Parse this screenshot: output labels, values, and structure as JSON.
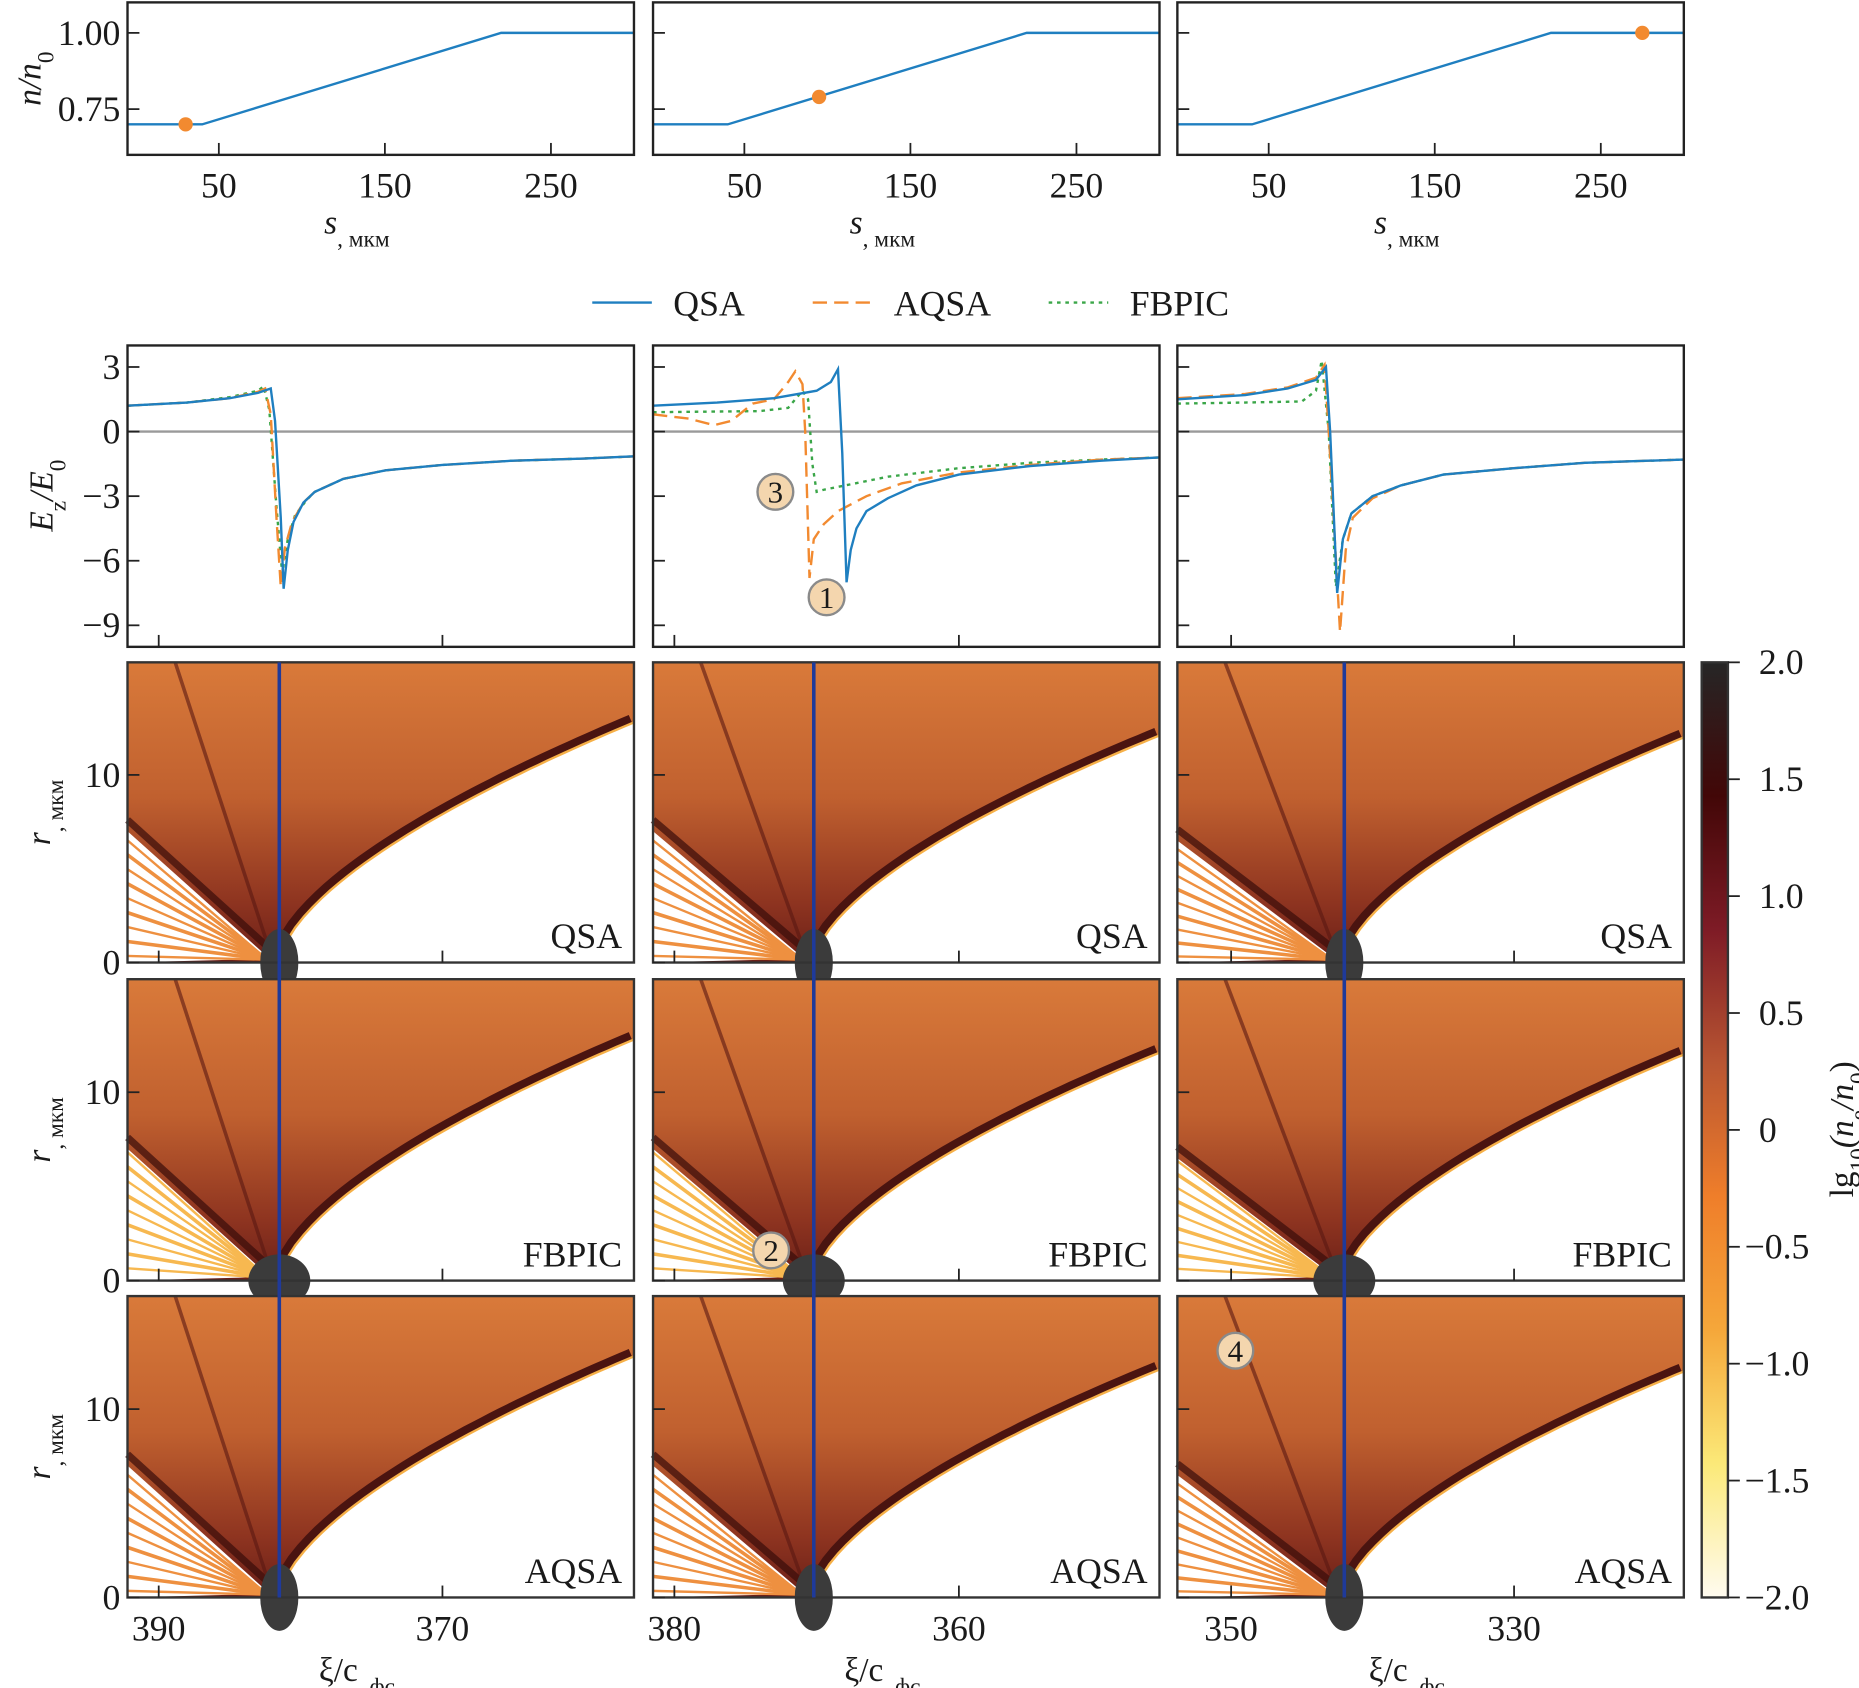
{
  "chart_data": {
    "type": "line",
    "density_profile": {
      "ylabel": [
        "n/n",
        "0"
      ],
      "xlabel": [
        "s",
        ", мкм"
      ],
      "xlim": [
        -5,
        300
      ],
      "ylim": [
        0.6,
        1.1
      ],
      "xticks": [
        "50",
        "150",
        "250"
      ],
      "xtick_values": [
        50,
        150,
        250
      ],
      "yticks": [
        "0.75",
        "1.00"
      ],
      "ytick_values": [
        0.75,
        1.0
      ],
      "profile": {
        "s": [
          -5,
          40,
          220,
          300
        ],
        "n": [
          0.7,
          0.7,
          1.0,
          1.0
        ]
      },
      "line_color": "#1f7fc0",
      "marker_color": "#f28a30",
      "markers": [
        {
          "s": 30,
          "n": 0.7
        },
        {
          "s": 95,
          "n": 0.79
        },
        {
          "s": 275,
          "n": 1.0
        }
      ]
    },
    "legend": {
      "placement": "top-center",
      "entries": [
        {
          "name": "QSA",
          "color": "#1f7fc0",
          "style": "solid"
        },
        {
          "name": "AQSA",
          "color": "#f28a30",
          "style": "dashed"
        },
        {
          "name": "FBPIC",
          "color": "#3aa648",
          "style": "dotted"
        }
      ]
    },
    "ez": {
      "ylabel": [
        "E",
        "z",
        "/E",
        "0"
      ],
      "ylim": [
        -10,
        4
      ],
      "yticks": [
        "3",
        "0",
        "−3",
        "−6",
        "−9"
      ],
      "ytick_values": [
        3,
        0,
        -3,
        -6,
        -9
      ],
      "zero_line_color": "#9a9a9a",
      "panels": [
        {
          "xlim": [
            392.2,
            356.5
          ],
          "series": {
            "QSA": [
              [
                392.2,
                1.2
              ],
              [
                388,
                1.35
              ],
              [
                385,
                1.55
              ],
              [
                383,
                1.8
              ],
              [
                382.1,
                2.0
              ],
              [
                381.8,
                0.5
              ],
              [
                381.4,
                -4
              ],
              [
                381.2,
                -7.3
              ],
              [
                380.9,
                -5.5
              ],
              [
                380.5,
                -4.2
              ],
              [
                379.8,
                -3.3
              ],
              [
                379,
                -2.8
              ],
              [
                377,
                -2.2
              ],
              [
                374,
                -1.8
              ],
              [
                370,
                -1.55
              ],
              [
                365,
                -1.35
              ],
              [
                360,
                -1.25
              ],
              [
                356.5,
                -1.15
              ]
            ],
            "AQSA": [
              [
                392.2,
                1.2
              ],
              [
                388,
                1.35
              ],
              [
                385,
                1.55
              ],
              [
                383,
                1.85
              ],
              [
                382.5,
                2.0
              ],
              [
                382.1,
                0.8
              ],
              [
                381.7,
                -4
              ],
              [
                381.4,
                -7.2
              ],
              [
                381.1,
                -5.4
              ],
              [
                380.6,
                -4.2
              ],
              [
                379.8,
                -3.3
              ],
              [
                379,
                -2.8
              ],
              [
                377,
                -2.2
              ],
              [
                374,
                -1.8
              ],
              [
                370,
                -1.55
              ],
              [
                365,
                -1.35
              ],
              [
                360,
                -1.25
              ],
              [
                356.5,
                -1.15
              ]
            ],
            "FBPIC": [
              [
                392.2,
                1.2
              ],
              [
                388,
                1.35
              ],
              [
                385,
                1.6
              ],
              [
                383,
                1.9
              ],
              [
                382.6,
                2.1
              ],
              [
                382.2,
                1.0
              ],
              [
                381.7,
                -3.5
              ],
              [
                381.3,
                -6.6
              ],
              [
                380.9,
                -5.0
              ],
              [
                380.4,
                -3.9
              ],
              [
                379.6,
                -3.2
              ],
              [
                379,
                -2.8
              ],
              [
                377,
                -2.2
              ],
              [
                374,
                -1.8
              ],
              [
                370,
                -1.55
              ],
              [
                365,
                -1.35
              ],
              [
                360,
                -1.25
              ],
              [
                356.5,
                -1.15
              ]
            ]
          }
        },
        {
          "xlim": [
            381.5,
            345.9
          ],
          "series": {
            "QSA": [
              [
                381.5,
                1.2
              ],
              [
                377,
                1.35
              ],
              [
                373,
                1.55
              ],
              [
                370,
                1.9
              ],
              [
                369,
                2.3
              ],
              [
                368.5,
                2.9
              ],
              [
                368.2,
                -1
              ],
              [
                367.9,
                -7.0
              ],
              [
                367.6,
                -5.5
              ],
              [
                367.2,
                -4.5
              ],
              [
                366.5,
                -3.7
              ],
              [
                365,
                -3.1
              ],
              [
                363,
                -2.5
              ],
              [
                360,
                -2.0
              ],
              [
                355,
                -1.6
              ],
              [
                350,
                -1.35
              ],
              [
                345.9,
                -1.2
              ]
            ],
            "AQSA": [
              [
                381.5,
                0.8
              ],
              [
                379,
                0.6
              ],
              [
                377.2,
                0.3
              ],
              [
                376,
                0.5
              ],
              [
                374.5,
                1.3
              ],
              [
                373,
                1.5
              ],
              [
                372,
                2.3
              ],
              [
                371.5,
                2.8
              ],
              [
                371,
                2.2
              ],
              [
                370.8,
                0
              ],
              [
                370.5,
                -6.8
              ],
              [
                370.2,
                -5
              ],
              [
                369.5,
                -4.3
              ],
              [
                368.5,
                -3.7
              ],
              [
                366.5,
                -3.0
              ],
              [
                364,
                -2.4
              ],
              [
                360,
                -1.9
              ],
              [
                355,
                -1.55
              ],
              [
                350,
                -1.3
              ],
              [
                345.9,
                -1.2
              ]
            ],
            "FBPIC": [
              [
                381.5,
                0.9
              ],
              [
                374,
                0.95
              ],
              [
                372,
                1.1
              ],
              [
                371,
                1.9
              ],
              [
                370.6,
                1.5
              ],
              [
                370.3,
                -1.5
              ],
              [
                370,
                -2.8
              ],
              [
                369.5,
                -2.7
              ],
              [
                368,
                -2.5
              ],
              [
                365,
                -2.1
              ],
              [
                360,
                -1.7
              ],
              [
                355,
                -1.45
              ],
              [
                350,
                -1.3
              ],
              [
                345.9,
                -1.2
              ]
            ]
          }
        },
        {
          "xlim": [
            353.8,
            318
          ],
          "series": {
            "QSA": [
              [
                353.8,
                1.5
              ],
              [
                349,
                1.7
              ],
              [
                346,
                2.0
              ],
              [
                344,
                2.4
              ],
              [
                343.3,
                3.0
              ],
              [
                343,
                0
              ],
              [
                342.5,
                -7.5
              ],
              [
                342.1,
                -5
              ],
              [
                341.5,
                -3.8
              ],
              [
                340,
                -3
              ],
              [
                338,
                -2.5
              ],
              [
                335,
                -2.0
              ],
              [
                330,
                -1.7
              ],
              [
                325,
                -1.45
              ],
              [
                318,
                -1.3
              ]
            ],
            "AQSA": [
              [
                353.8,
                1.55
              ],
              [
                349,
                1.75
              ],
              [
                346,
                2.05
              ],
              [
                344,
                2.5
              ],
              [
                343.4,
                3.1
              ],
              [
                343.1,
                0
              ],
              [
                342.3,
                -9.3
              ],
              [
                341.9,
                -5.5
              ],
              [
                341.4,
                -4.0
              ],
              [
                340,
                -3.1
              ],
              [
                338,
                -2.5
              ],
              [
                335,
                -2.0
              ],
              [
                330,
                -1.7
              ],
              [
                325,
                -1.45
              ],
              [
                318,
                -1.3
              ]
            ],
            "FBPIC": [
              [
                353.8,
                1.3
              ],
              [
                349,
                1.35
              ],
              [
                345,
                1.4
              ],
              [
                344,
                1.9
              ],
              [
                343.6,
                3.3
              ],
              [
                343.1,
                0
              ],
              [
                342.6,
                -7.2
              ],
              [
                342.1,
                -5
              ],
              [
                341.5,
                -3.8
              ],
              [
                340,
                -3
              ],
              [
                338,
                -2.5
              ],
              [
                335,
                -2.0
              ],
              [
                330,
                -1.7
              ],
              [
                325,
                -1.45
              ],
              [
                318,
                -1.3
              ]
            ]
          }
        }
      ]
    },
    "density_maps": {
      "type": "heatmap",
      "ylabel": [
        "r",
        ", мкм"
      ],
      "xlabel": [
        "ξ/c",
        ", фс"
      ],
      "ylim": [
        0,
        16
      ],
      "yticks": [
        "0",
        "10"
      ],
      "ytick_values": [
        0,
        10
      ],
      "row_labels": [
        "QSA",
        "FBPIC",
        "AQSA"
      ],
      "probe_line_color": "#1f3a9a",
      "columns": [
        {
          "xlim": [
            392.2,
            356.5
          ],
          "xticks": [
            "390",
            "370"
          ],
          "xtick_values": [
            390,
            370
          ],
          "probe_xi": 381.5,
          "bubble_edge_r": 12.8,
          "rear_edge_r": 7
        },
        {
          "xlim": [
            381.5,
            345.9
          ],
          "xticks": [
            "380",
            "360"
          ],
          "xtick_values": [
            380,
            360
          ],
          "probe_xi": 370.2,
          "bubble_edge_r": 12.1,
          "rear_edge_r": 7
        },
        {
          "xlim": [
            353.8,
            318
          ],
          "xticks": [
            "350",
            "330"
          ],
          "xtick_values": [
            350,
            330
          ],
          "probe_xi": 342,
          "bubble_edge_r": 12.0,
          "rear_edge_r": 6.5
        }
      ]
    },
    "colorbar": {
      "label": [
        "lg",
        "10",
        "(n",
        "e",
        "/n",
        "0",
        ")"
      ],
      "range": [
        -2,
        2
      ],
      "ticks": [
        "2.0",
        "1.5",
        "1.0",
        "0.5",
        "0",
        "−0.5",
        "−1.0",
        "−1.5",
        "−2.0"
      ],
      "tick_values": [
        2,
        1.5,
        1,
        0.5,
        0,
        -0.5,
        -1,
        -1.5,
        -2
      ],
      "colors": [
        "#fffbf0",
        "#fbe978",
        "#f5a73a",
        "#ef7e2a",
        "#b85532",
        "#7e1b26",
        "#420707",
        "#262626"
      ]
    },
    "annotations": [
      {
        "label": "3",
        "panel": "ez",
        "column": 2,
        "xi": 372.9,
        "value": -2.8
      },
      {
        "label": "1",
        "panel": "ez",
        "column": 2,
        "xi": 369.3,
        "value": -7.7
      },
      {
        "label": "2",
        "panel": "density",
        "row": 2,
        "column": 2,
        "xi": 373.2,
        "r": 1.6
      },
      {
        "label": "4",
        "panel": "density",
        "row": 3,
        "column": 3,
        "xi": 349.7,
        "r": 13.1
      }
    ]
  }
}
